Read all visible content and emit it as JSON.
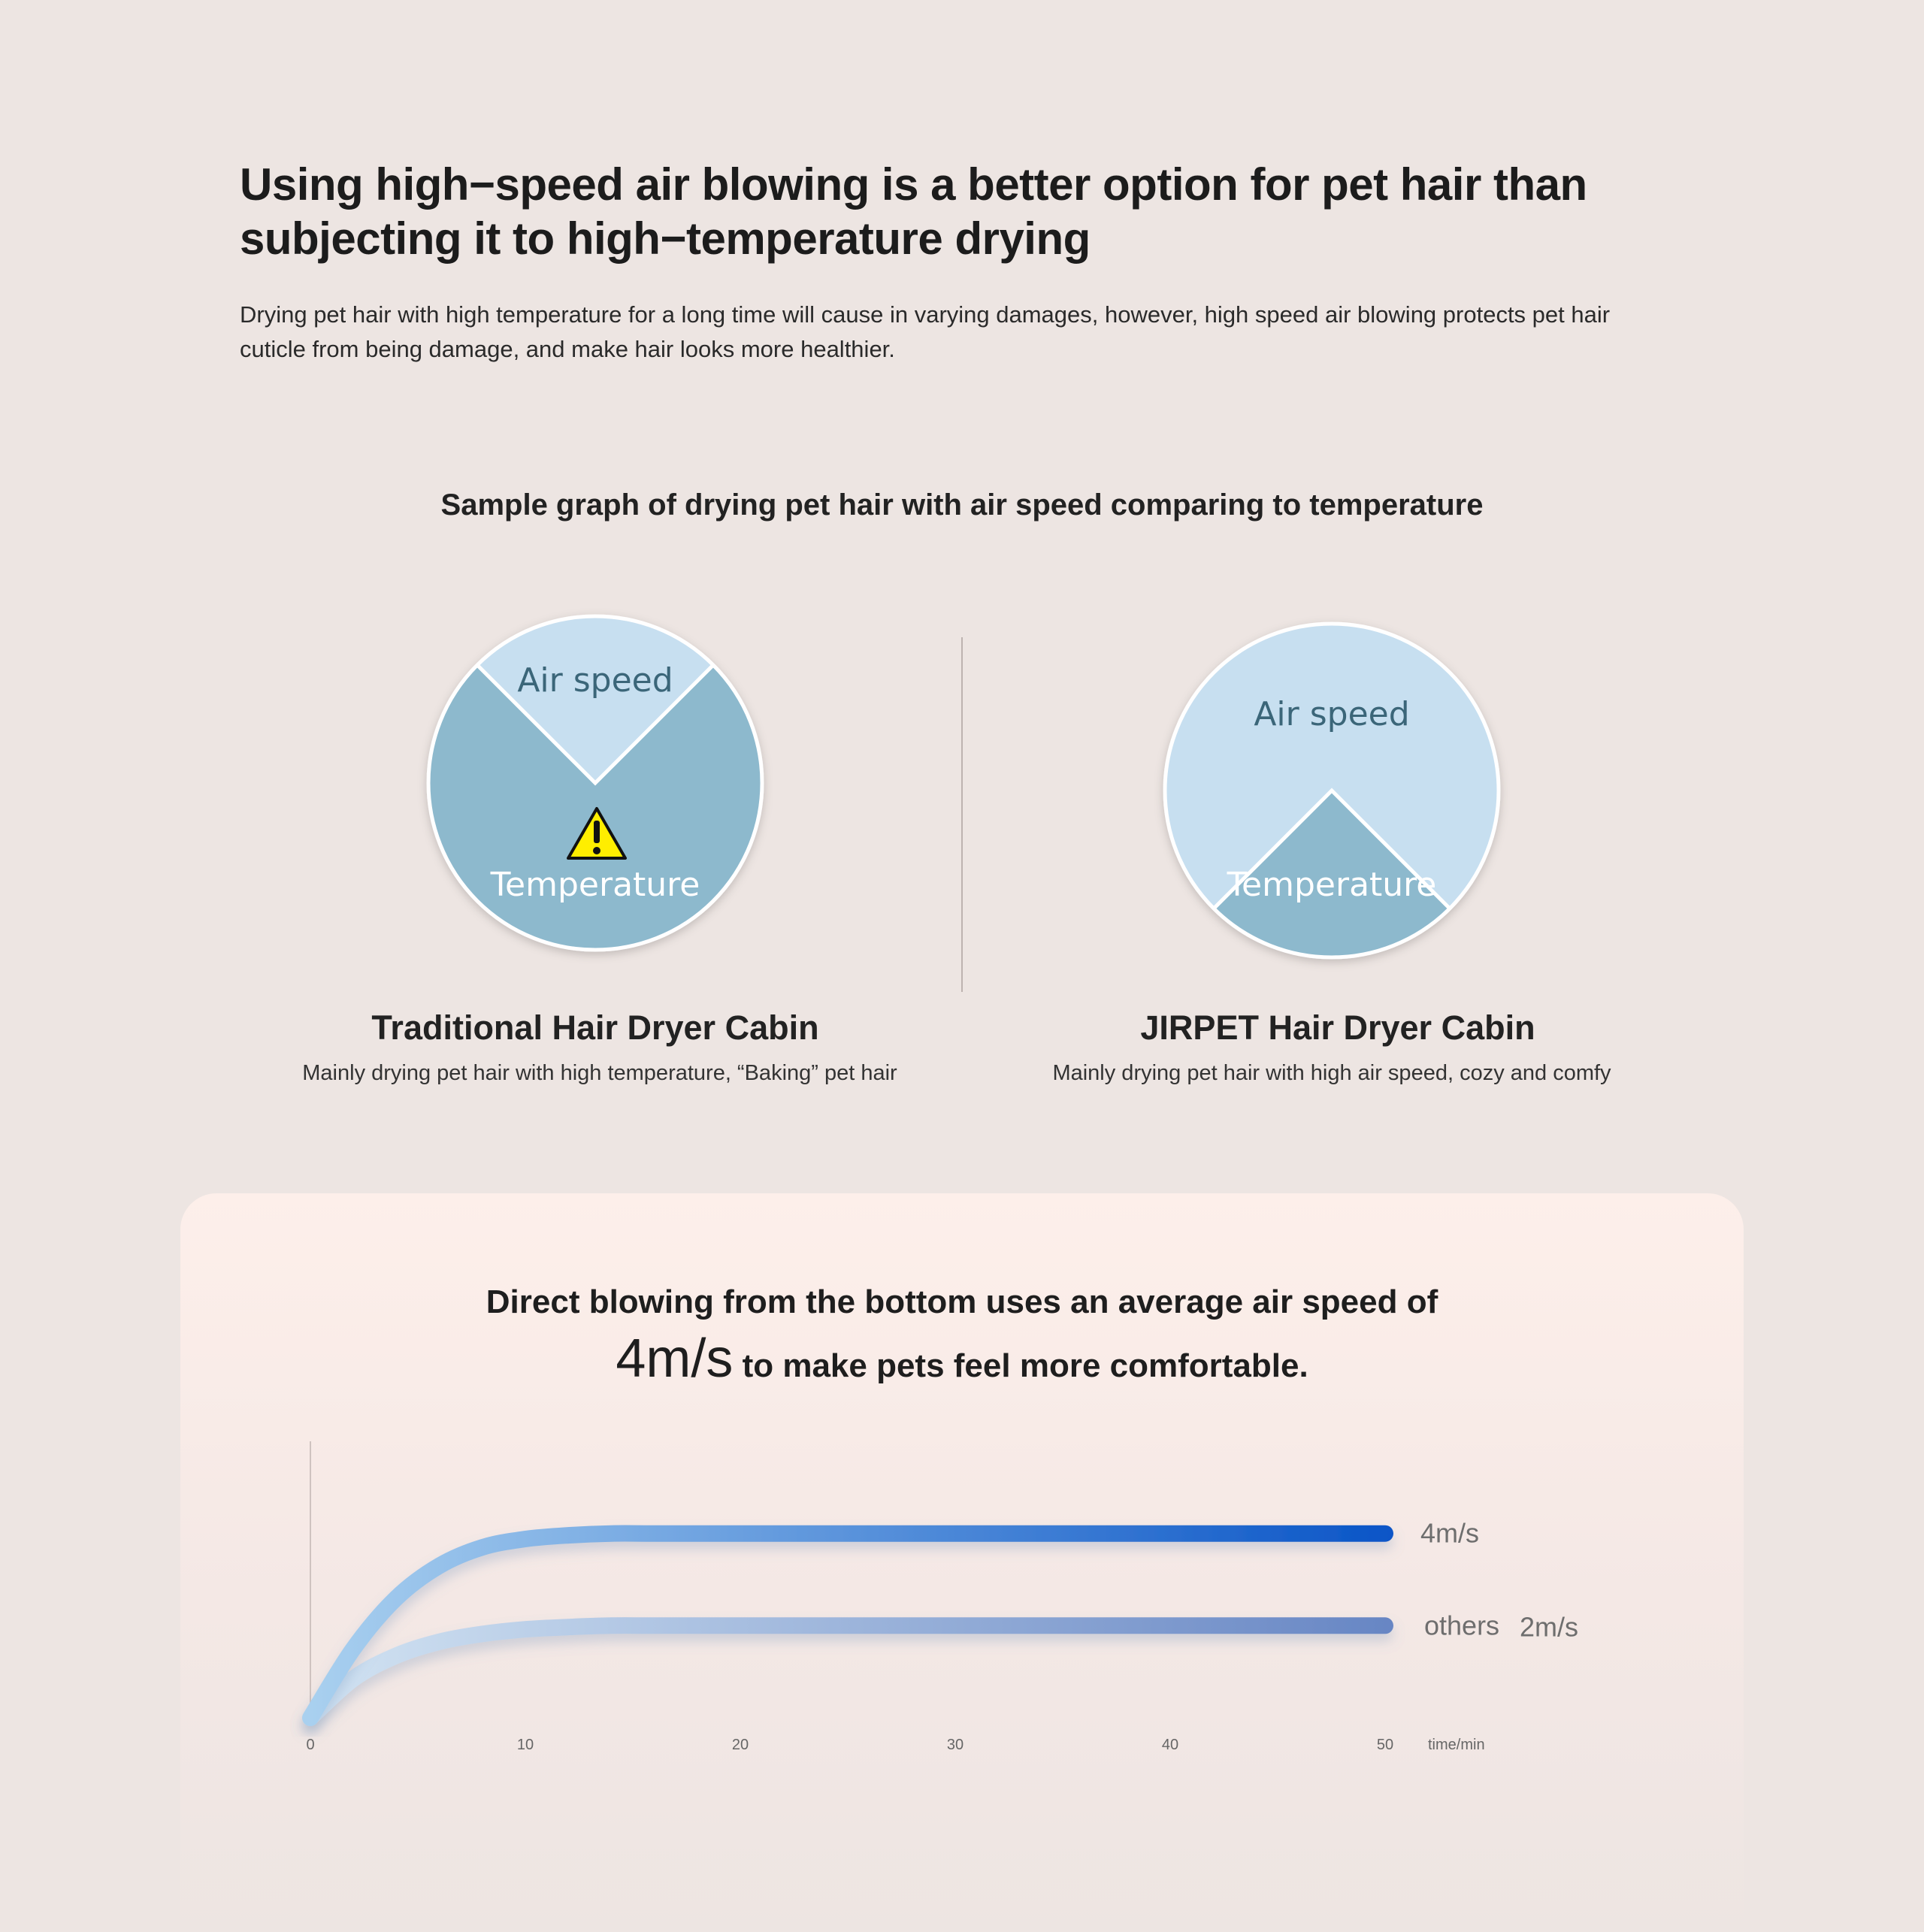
{
  "headline": {
    "line1": "Using high−speed air blowing is a better option for pet hair than",
    "line2": "subjecting it to high−temperature drying"
  },
  "intro": {
    "line1": "Drying pet hair with high temperature for a long time will cause in varying damages, however, high speed air blowing protects pet hair",
    "line2": "cuticle from being damage, and make hair looks more healthier."
  },
  "comparison": {
    "title": "Sample graph of drying pet hair with air speed comparing to temperature",
    "colors": {
      "air_speed": "#c7dff0",
      "temperature": "#8db9cd",
      "warning": "#ffee00"
    },
    "traditional": {
      "pie_label_top": "Air speed",
      "pie_label_bottom": "Temperature",
      "air_speed_share": 0.25,
      "warning_icon": "warning-triangle-icon",
      "name": "Traditional Hair Dryer Cabin",
      "description": "Mainly drying pet hair with high temperature, “Baking” pet hair"
    },
    "jirpet": {
      "pie_label_top": "Air speed",
      "pie_label_bottom": "Temperature",
      "air_speed_share": 0.75,
      "name": "JIRPET Hair Dryer Cabin",
      "description": "Mainly drying pet hair with high air speed, cozy and comfy"
    }
  },
  "speed_card": {
    "line1": "Direct blowing from the bottom uses an average air speed of",
    "speed_big": "4m/s",
    "line2_rest": " to make pets feel more comfortable."
  },
  "chart_data": {
    "type": "line",
    "title": "",
    "xlabel": "time/min",
    "ylabel": "",
    "x_ticks": [
      0,
      10,
      20,
      30,
      40,
      50
    ],
    "xlim": [
      0,
      50
    ],
    "ylim": [
      0,
      6
    ],
    "grid": true,
    "series": [
      {
        "name": "4m/s",
        "x": [
          0,
          2,
          4,
          6,
          8,
          10,
          12,
          14,
          16,
          20,
          30,
          40,
          50
        ],
        "y": [
          0,
          1.5,
          2.6,
          3.3,
          3.7,
          3.88,
          3.96,
          4.0,
          4.0,
          4.0,
          4.0,
          4.0,
          4.0
        ],
        "color_start": "#a9d0ef",
        "color_end": "#0a55c7"
      },
      {
        "name": "others",
        "label": "2m/s",
        "x": [
          0,
          2,
          4,
          6,
          8,
          10,
          12,
          14,
          16,
          20,
          30,
          40,
          50
        ],
        "y": [
          0,
          0.85,
          1.35,
          1.65,
          1.82,
          1.92,
          1.97,
          2.0,
          2.0,
          2.0,
          2.0,
          2.0,
          2.0
        ],
        "color_start": "#d2e3f2",
        "color_end": "#6786c4"
      }
    ]
  }
}
